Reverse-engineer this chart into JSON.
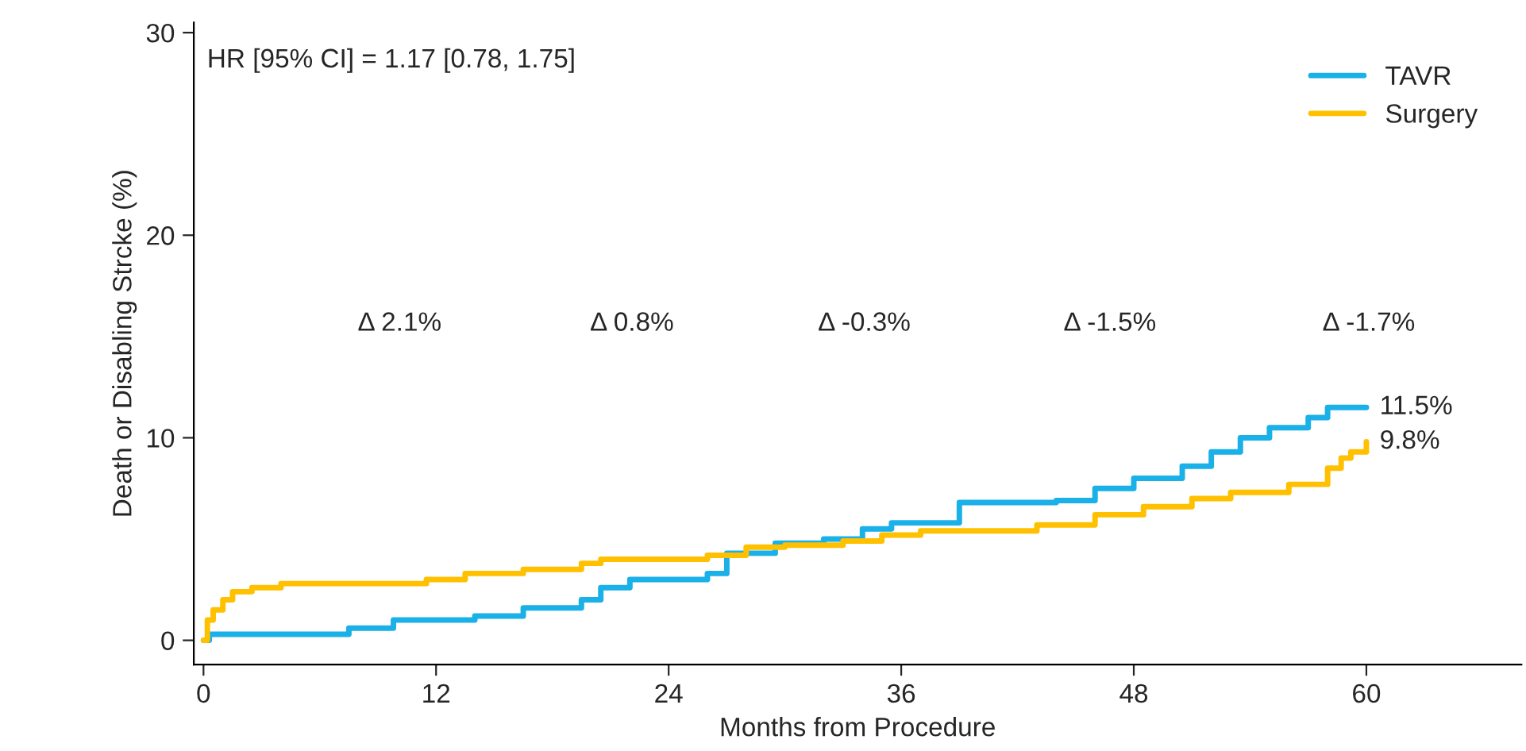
{
  "chart_data": {
    "type": "step",
    "xlabel": "Months from Procedure",
    "ylabel": "Death or Disabling Strcke (%)",
    "annotations": [
      "HR [95% CI] = 1.17 [0.78, 1.75]",
      "Δ 2.1%",
      "Δ 0.8%",
      "Δ -0.3%",
      "Δ -1.5%",
      "Δ -1.7%"
    ],
    "series": [
      {
        "name": "TAVR",
        "color": "#1ab0e8",
        "x": [
          0,
          0.3,
          7.5,
          9.8,
          14,
          16.5,
          19.5,
          20.5,
          22,
          26,
          27,
          29.5,
          32,
          34,
          35.5,
          39,
          44,
          46,
          48,
          50.5,
          52,
          53.5,
          55,
          57,
          58,
          60
        ],
        "values": [
          0,
          0.3,
          0.6,
          1.0,
          1.2,
          1.6,
          2.0,
          2.6,
          3.0,
          3.3,
          4.3,
          4.8,
          5.0,
          5.5,
          5.8,
          6.8,
          6.9,
          7.5,
          8.0,
          8.6,
          9.3,
          10.0,
          10.5,
          11.0,
          11.5,
          11.5
        ],
        "value_labels": [
          null,
          null,
          null,
          null,
          null,
          null,
          null,
          null,
          null,
          null,
          null,
          null,
          null,
          null,
          null,
          null,
          null,
          null,
          null,
          null,
          null,
          null,
          null,
          null,
          null,
          "11.5%"
        ]
      },
      {
        "name": "Surgery",
        "color": "#ffc000",
        "x": [
          0,
          0.2,
          0.5,
          1,
          1.5,
          2.5,
          4,
          11.5,
          13.5,
          16.5,
          19.5,
          20.5,
          26,
          28,
          30,
          33,
          35,
          37,
          43,
          46,
          48.5,
          51,
          53,
          56,
          58,
          58.7,
          59.2,
          60
        ],
        "values": [
          0,
          1.0,
          1.5,
          2.0,
          2.4,
          2.6,
          2.8,
          3.0,
          3.3,
          3.5,
          3.8,
          4.0,
          4.2,
          4.6,
          4.7,
          4.9,
          5.2,
          5.4,
          5.7,
          6.2,
          6.6,
          7.0,
          7.3,
          7.7,
          8.5,
          9.0,
          9.3,
          9.8
        ],
        "value_labels": [
          null,
          null,
          null,
          null,
          null,
          null,
          null,
          null,
          null,
          null,
          null,
          null,
          null,
          null,
          null,
          null,
          null,
          null,
          null,
          null,
          null,
          null,
          null,
          null,
          null,
          null,
          null,
          "9.8%"
        ]
      }
    ],
    "xlim": [
      -0.5,
      68
    ],
    "xticks": [
      0,
      12,
      24,
      36,
      48,
      60
    ],
    "ylim": [
      -1.2,
      30.5
    ],
    "yticks": [
      0,
      10,
      20,
      30
    ],
    "legend": "top right",
    "line_style": "solid",
    "marker": "none",
    "grid": false
  }
}
